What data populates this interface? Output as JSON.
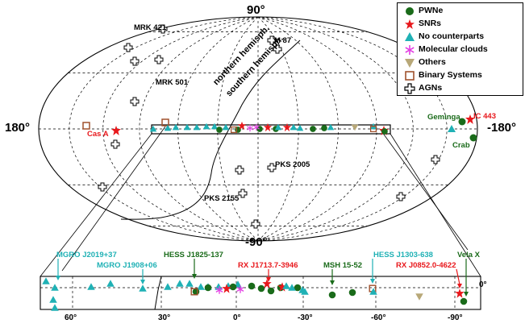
{
  "chart_data": [
    {
      "type": "scatter",
      "projection": "aitoff-hammer galactic all-sky",
      "lat_labels": [
        "90°",
        "-90°"
      ],
      "lon_labels": [
        "180°",
        "-180°"
      ],
      "curve_labels": [
        "northern  hemisph.",
        "southern hemisph."
      ],
      "legend": [
        {
          "name": "PWNe",
          "symbol": "dot-icon",
          "color": "#1a6b1a"
        },
        {
          "name": "SNRs",
          "symbol": "star-icon",
          "color": "#e8181c"
        },
        {
          "name": "No counterparts",
          "symbol": "triangle-icon",
          "color": "#1fb1b5"
        },
        {
          "name": "Molecular clouds",
          "symbol": "asterisk-icon",
          "color": "#e340e3"
        },
        {
          "name": "Others",
          "symbol": "down-triangle-icon",
          "color": "#b8a878"
        },
        {
          "name": "Binary Systems",
          "symbol": "square-icon",
          "color": "#a0522d"
        },
        {
          "name": "AGNs",
          "symbol": "cross-icon",
          "color": "#000000"
        }
      ],
      "legend_position": "top-right",
      "agn_labels": [
        {
          "text": "MRK 421",
          "l": 179.8,
          "b": 65.0
        },
        {
          "text": "M 87",
          "l": -76.0,
          "b": 74.5
        },
        {
          "text": "MRK 501",
          "l": 63.6,
          "b": 38.9
        },
        {
          "text": "PKS 2005",
          "l": -10.0,
          "b": -34.0
        },
        {
          "text": "PKS 2155",
          "l": 17.7,
          "b": -52.2
        }
      ],
      "source_labels": [
        {
          "text": "Cas A",
          "l": 111.7,
          "b": -2.1,
          "color": "#e8181c"
        },
        {
          "text": "Geminga",
          "l": -164.9,
          "b": 4.3,
          "color": "#1a6b1a"
        },
        {
          "text": "IC 443",
          "l": -171.0,
          "b": 3.1,
          "color": "#e8181c"
        },
        {
          "text": "Crab",
          "l": -175.4,
          "b": -5.8,
          "color": "#1a6b1a"
        }
      ]
    },
    {
      "type": "scatter",
      "region": "Galactic plane zoom",
      "xticks": [
        "60°",
        "30°",
        "0°",
        "-30°",
        "-60°",
        "-90°"
      ],
      "yticks": [
        "0°"
      ],
      "source_labels": [
        {
          "text": "MGRO J2019+37",
          "color": "#1fb1b5"
        },
        {
          "text": "MGRO J1908+06",
          "color": "#1fb1b5"
        },
        {
          "text": "HESS J1825-137",
          "color": "#1a6b1a"
        },
        {
          "text": "RX J1713.7-3946",
          "color": "#e8181c"
        },
        {
          "text": "MSH 15-52",
          "color": "#1a6b1a"
        },
        {
          "text": "HESS J1303-638",
          "color": "#1fb1b5"
        },
        {
          "text": "RX J0852.0-4622",
          "color": "#e8181c"
        },
        {
          "text": "Vela X",
          "color": "#1a6b1a"
        }
      ]
    }
  ]
}
